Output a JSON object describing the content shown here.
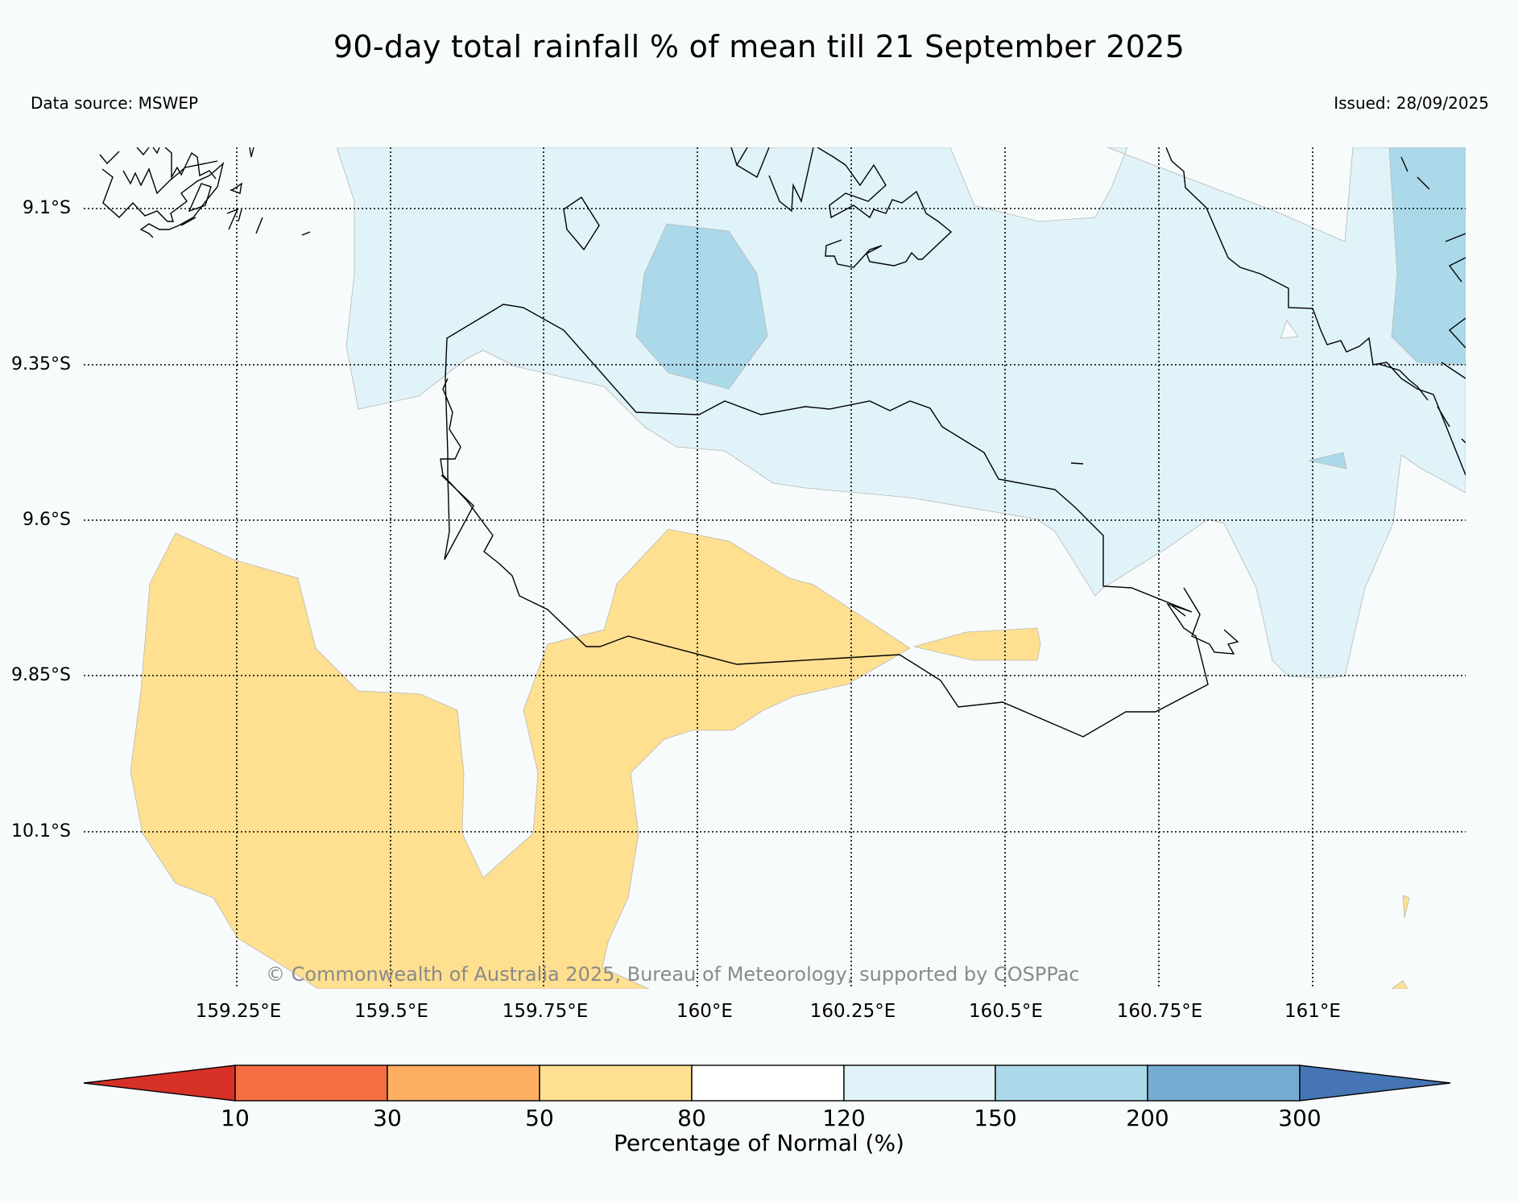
{
  "title": "90-day total rainfall % of mean till 21 September 2025",
  "data_source": "Data source: MSWEP",
  "issued": "Issued: 28/09/2025",
  "copyright": "© Commonwealth of Australia 2025, Bureau of Meteorology, supported by COSPPac",
  "map": {
    "lat_labels": [
      "9.1°S",
      "9.35°S",
      "9.6°S",
      "9.85°S",
      "10.1°S"
    ],
    "lon_labels": [
      "159.25°E",
      "159.5°E",
      "159.75°E",
      "160°E",
      "160.25°E",
      "160.5°E",
      "160.75°E",
      "161°E"
    ],
    "lat_range": [
      "9.0°S",
      "10.35°S"
    ],
    "lon_range": [
      "159.0°E",
      "161.25°E"
    ]
  },
  "colorbar": {
    "label": "Percentage of Normal (%)",
    "ticks": [
      "10",
      "30",
      "50",
      "80",
      "120",
      "150",
      "200",
      "300"
    ],
    "colors": {
      "below_10": "#d73027",
      "10_30": "#f46d43",
      "30_50": "#fdae61",
      "50_80": "#fee090",
      "80_120": "#ffffff",
      "120_150": "#e0f3f8",
      "150_200": "#abd9e9",
      "200_300": "#74add1",
      "above_300": "#4575b4"
    }
  }
}
